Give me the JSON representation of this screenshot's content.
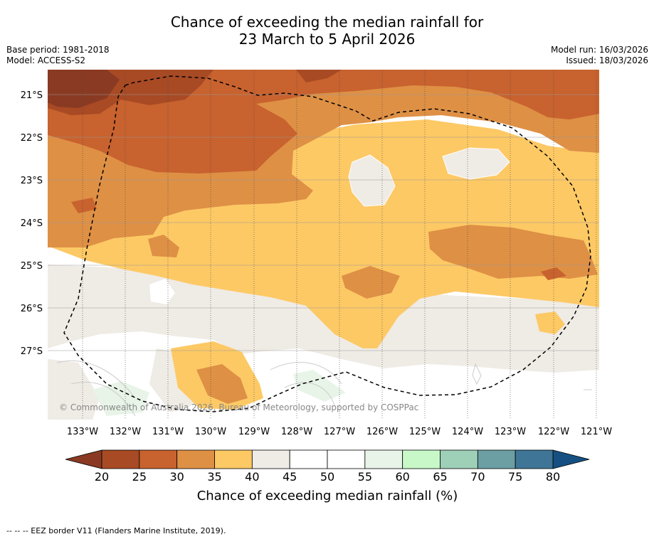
{
  "header": {
    "title_line1": "Chance of exceeding the median rainfall for",
    "title_line2": "23 March to 5 April 2026",
    "base_period": "Base period: 1981-2018",
    "model": "Model: ACCESS-S2",
    "model_run": "Model run: 16/03/2026",
    "issued": "Issued: 18/03/2026"
  },
  "map": {
    "lat_labels": [
      "21°S",
      "22°S",
      "23°S",
      "24°S",
      "25°S",
      "26°S",
      "27°S"
    ],
    "lon_labels": [
      "133°W",
      "132°W",
      "131°W",
      "130°W",
      "129°W",
      "128°W",
      "127°W",
      "126°W",
      "125°W",
      "124°W",
      "123°W",
      "122°W",
      "121°W"
    ],
    "copyright": "© Commonwealth of Australia 2026, Bureau of Meteorology, supported by COSPPac"
  },
  "colorbar": {
    "ticks": [
      "20",
      "25",
      "30",
      "35",
      "40",
      "45",
      "50",
      "55",
      "60",
      "65",
      "70",
      "75",
      "80"
    ],
    "colors": [
      "#a84a24",
      "#c8622e",
      "#de9045",
      "#fdc965",
      "#efebe5",
      "#ffffff",
      "#ffffff",
      "#e8f4e8",
      "#c8f8c8",
      "#9ecfb7",
      "#6b9fa3",
      "#3f7596"
    ],
    "under_color": "#8a3a22",
    "over_color": "#165082",
    "label": "Chance of exceeding median rainfall (%)"
  },
  "footer": {
    "legend": "--  --  -- EEZ border V11 (Flanders Marine Institute, 2019)."
  }
}
